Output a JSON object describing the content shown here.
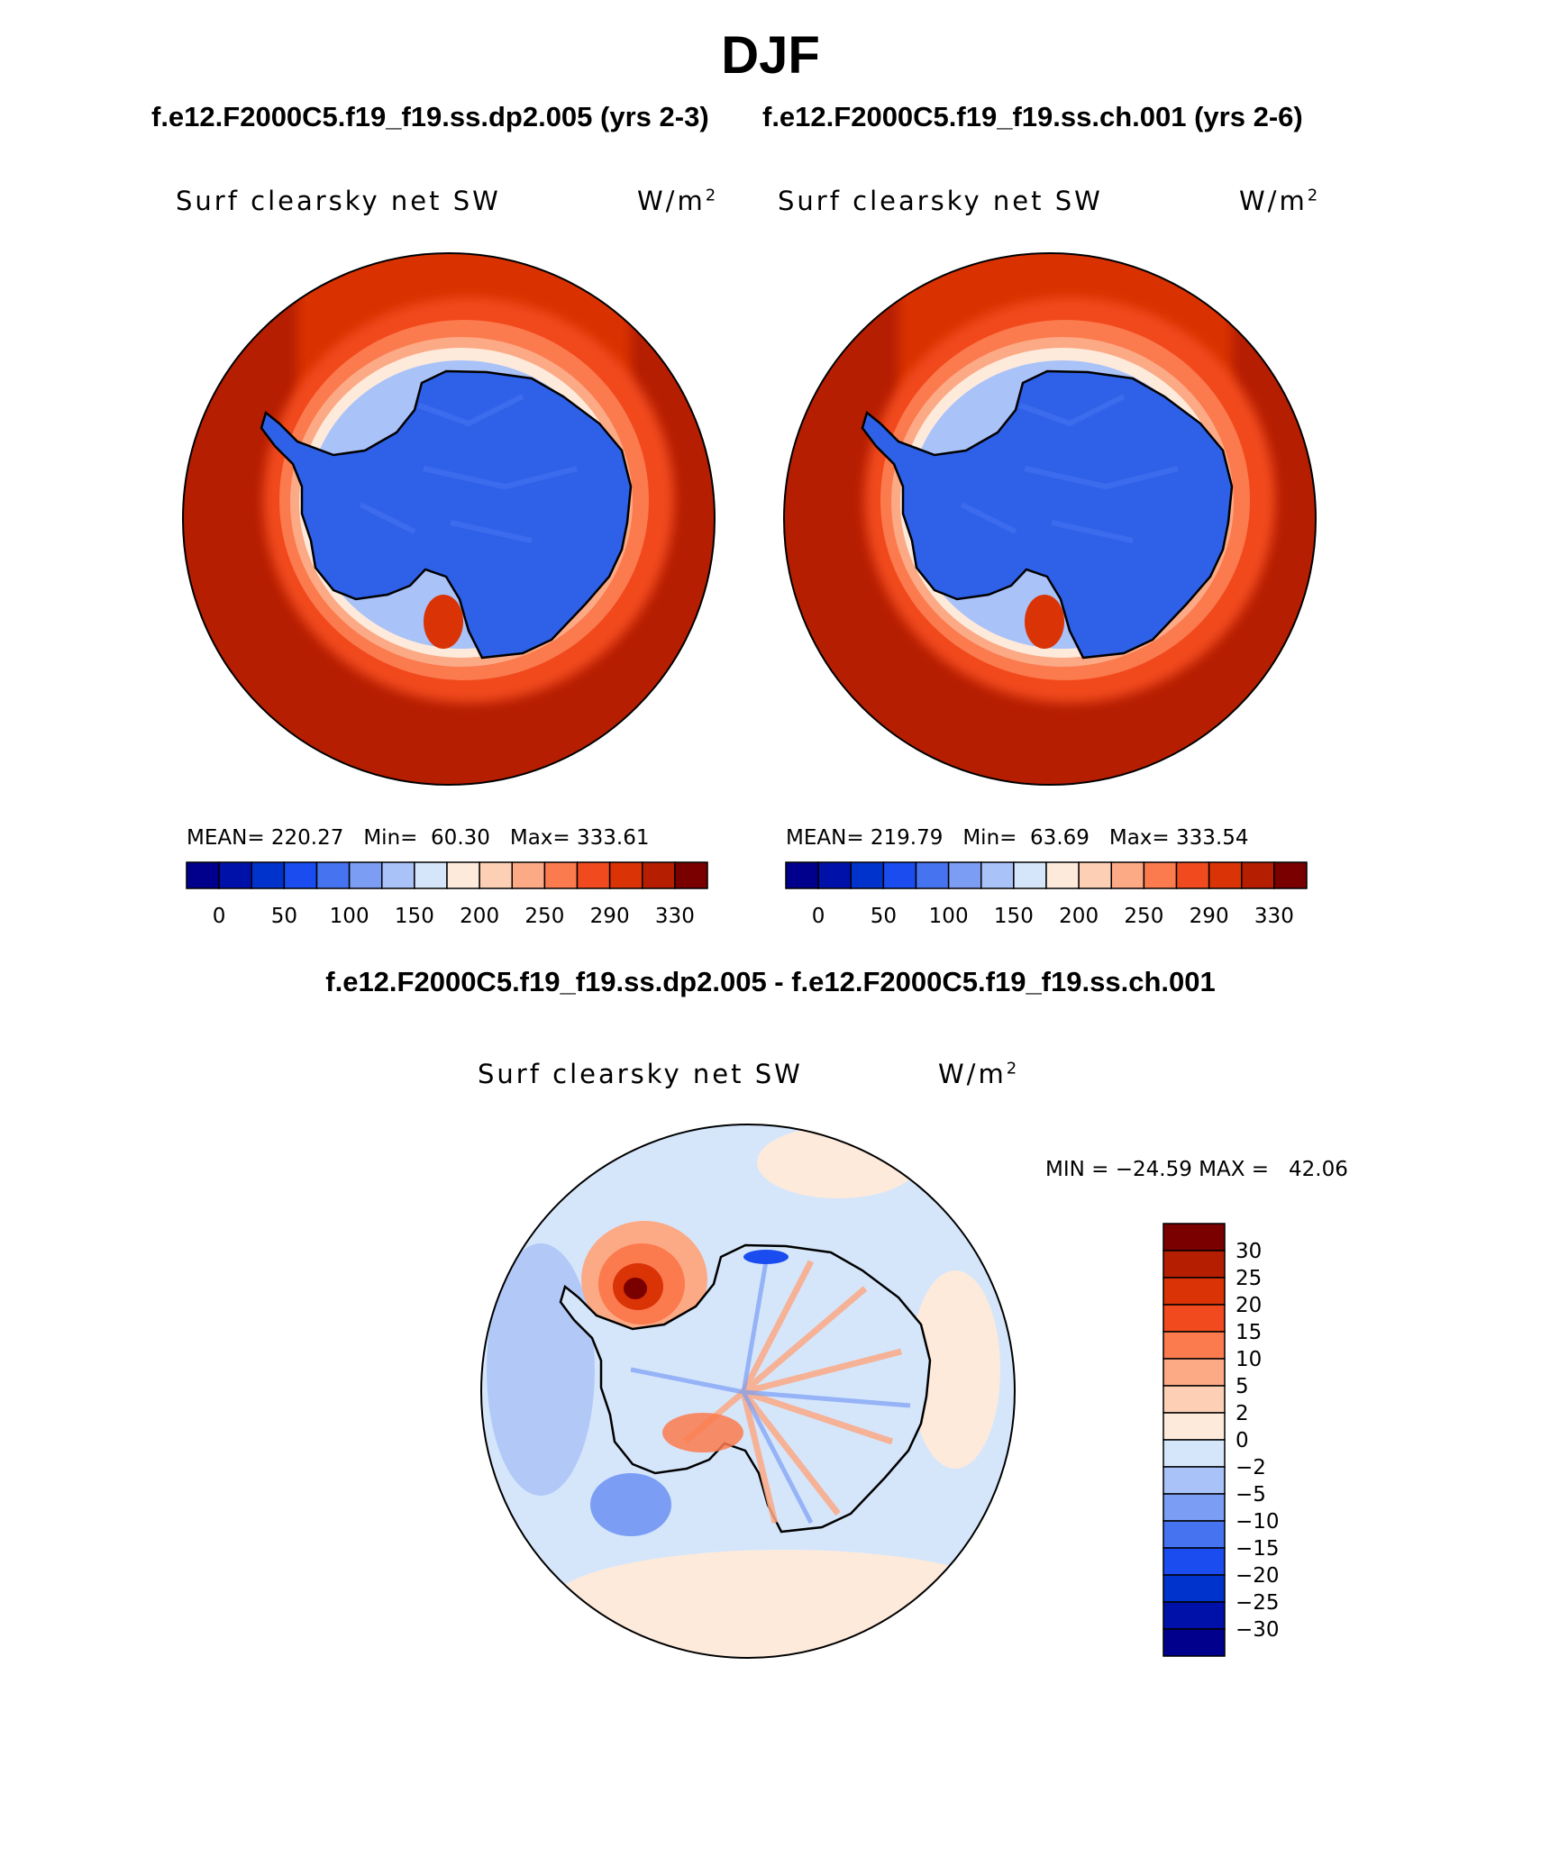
{
  "header": {
    "title": "DJF",
    "case_left": "f.e12.F2000C5.f19_f19.ss.dp2.005 (yrs 2-3)",
    "case_right": "f.e12.F2000C5.f19_f19.ss.ch.001 (yrs 2-6)",
    "diff_title": "f.e12.F2000C5.f19_f19.ss.dp2.005 - f.e12.F2000C5.f19_f19.ss.ch.001"
  },
  "colors": {
    "abs_scale": [
      "#00008c",
      "#0011aa",
      "#0033cc",
      "#1a4cf0",
      "#4673f0",
      "#7b9ef4",
      "#a9c2f8",
      "#d5e6fb",
      "#feeadb",
      "#fdd0b5",
      "#fca985",
      "#fb7a4e",
      "#f14a1e",
      "#d93306",
      "#b61e02",
      "#7a0000"
    ],
    "diff_scale": [
      "#00008c",
      "#0011aa",
      "#0033cc",
      "#1a4cf0",
      "#4673f0",
      "#7b9ef4",
      "#a9c2f8",
      "#d5e6fb",
      "#feeadb",
      "#fdd0b5",
      "#fca985",
      "#fb7a4e",
      "#f14a1e",
      "#d93306",
      "#b61e02",
      "#7a0000"
    ],
    "land_blue": "#2f61e8",
    "coast": "#000000"
  },
  "chart_data": [
    {
      "type": "heatmap",
      "projection": "south-polar-stereographic",
      "field": "Surf clearsky net SW",
      "units_base": "W/m",
      "units_exp": "2",
      "case": "f.e12.F2000C5.f19_f19.ss.dp2.005 (yrs 2-3)",
      "stats": {
        "mean_label": "MEAN=",
        "mean": "220.27",
        "min_label": "Min=",
        "min": "60.30",
        "max_label": "Max=",
        "max": "333.61"
      },
      "colorbar_ticks": [
        "0",
        "50",
        "100",
        "150",
        "200",
        "250",
        "290",
        "330"
      ]
    },
    {
      "type": "heatmap",
      "projection": "south-polar-stereographic",
      "field": "Surf clearsky net SW",
      "units_base": "W/m",
      "units_exp": "2",
      "case": "f.e12.F2000C5.f19_f19.ss.ch.001 (yrs 2-6)",
      "stats": {
        "mean_label": "MEAN=",
        "mean": "219.79",
        "min_label": "Min=",
        "min": "63.69",
        "max_label": "Max=",
        "max": "333.54"
      },
      "colorbar_ticks": [
        "0",
        "50",
        "100",
        "150",
        "200",
        "250",
        "290",
        "330"
      ]
    },
    {
      "type": "heatmap",
      "projection": "south-polar-stereographic",
      "field": "Surf clearsky net SW",
      "units_base": "W/m",
      "units_exp": "2",
      "case": "difference",
      "stats": {
        "text": "MIN = −24.59 MAX =   42.06"
      },
      "colorbar_ticks": [
        "30",
        "25",
        "20",
        "15",
        "10",
        "5",
        "2",
        "0",
        "−2",
        "−5",
        "−10",
        "−15",
        "−20",
        "−25",
        "−30"
      ]
    }
  ]
}
